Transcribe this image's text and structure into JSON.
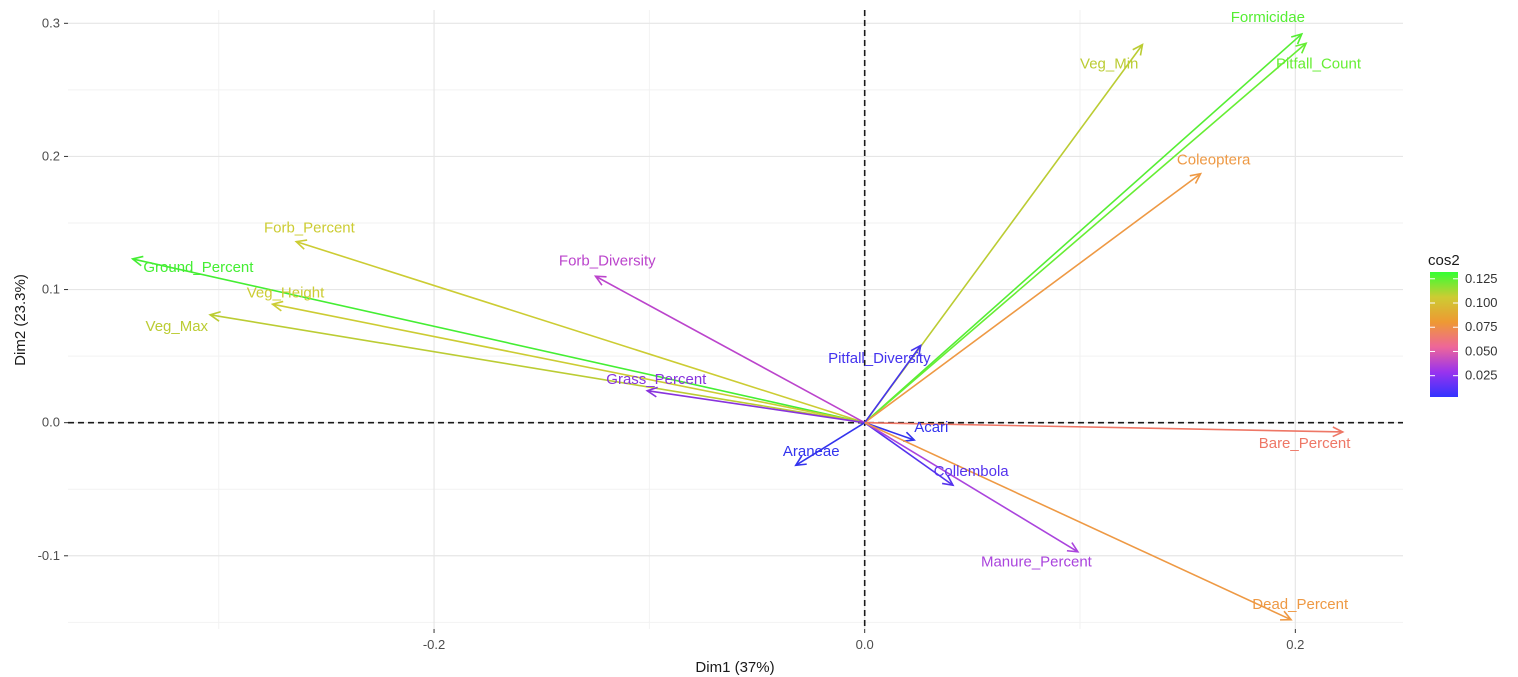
{
  "chart_data": {
    "type": "biplot",
    "xlabel": "Dim1 (37%)",
    "ylabel": "Dim2 (23.3%)",
    "xlim": [
      -0.37,
      0.25
    ],
    "ylim": [
      -0.155,
      0.31
    ],
    "x_ticks": [
      {
        "value": -0.2,
        "label": "-0.2"
      },
      {
        "value": 0.0,
        "label": "0.0"
      },
      {
        "value": 0.2,
        "label": "0.2"
      }
    ],
    "y_ticks": [
      {
        "value": -0.1,
        "label": "-0.1"
      },
      {
        "value": 0.0,
        "label": "0.0"
      },
      {
        "value": 0.1,
        "label": "0.1"
      },
      {
        "value": 0.2,
        "label": "0.2"
      },
      {
        "value": 0.3,
        "label": "0.3"
      }
    ],
    "grid": true,
    "reference_lines": {
      "x": 0,
      "y": 0,
      "style": "dashed"
    },
    "legend": {
      "title": "cos2",
      "position": "right",
      "gradient": [
        "#3333ff",
        "#9933ee",
        "#ee6699",
        "#ee9933",
        "#cccc33",
        "#33ff33"
      ],
      "ticks": [
        {
          "value": 0.025,
          "label": "0.025"
        },
        {
          "value": 0.05,
          "label": "0.050"
        },
        {
          "value": 0.075,
          "label": "0.075"
        },
        {
          "value": 0.1,
          "label": "0.100"
        },
        {
          "value": 0.125,
          "label": "0.125"
        }
      ],
      "range": [
        0.003,
        0.132
      ]
    },
    "variables": [
      {
        "name": "Formicidae",
        "x": 0.203,
        "y": 0.292,
        "cos2": 0.128,
        "color": "#55ee33",
        "label_anchor": "start",
        "label_x": 0.17,
        "label_y": 0.301
      },
      {
        "name": "Pitfall_Count",
        "x": 0.205,
        "y": 0.285,
        "cos2": 0.124,
        "color": "#66ee33",
        "label_anchor": "start",
        "label_x": 0.191,
        "label_y": 0.266
      },
      {
        "name": "Veg_Min",
        "x": 0.129,
        "y": 0.284,
        "cos2": 0.093,
        "color": "#bbcc33",
        "label_anchor": "start",
        "label_x": 0.1,
        "label_y": 0.266
      },
      {
        "name": "Coleoptera",
        "x": 0.156,
        "y": 0.187,
        "cos2": 0.07,
        "color": "#ee9944",
        "label_anchor": "start",
        "label_x": 0.145,
        "label_y": 0.194
      },
      {
        "name": "Forb_Percent",
        "x": -0.264,
        "y": 0.136,
        "cos2": 0.086,
        "color": "#cccc33",
        "label_anchor": "start",
        "label_x": -0.279,
        "label_y": 0.143
      },
      {
        "name": "Ground_Percent",
        "x": -0.34,
        "y": 0.123,
        "cos2": 0.127,
        "color": "#44ee33",
        "label_anchor": "start",
        "label_x": -0.335,
        "label_y": 0.113
      },
      {
        "name": "Veg_Height",
        "x": -0.275,
        "y": 0.089,
        "cos2": 0.083,
        "color": "#cccc33",
        "label_anchor": "start",
        "label_x": -0.287,
        "label_y": 0.094
      },
      {
        "name": "Veg_Max",
        "x": -0.304,
        "y": 0.081,
        "cos2": 0.092,
        "color": "#bbcc33",
        "label_anchor": "start",
        "label_x": -0.334,
        "label_y": 0.069
      },
      {
        "name": "Forb_Diversity",
        "x": -0.125,
        "y": 0.11,
        "cos2": 0.035,
        "color": "#bb44cc",
        "label_anchor": "start",
        "label_x": -0.142,
        "label_y": 0.118
      },
      {
        "name": "Grass_Percent",
        "x": -0.101,
        "y": 0.024,
        "cos2": 0.025,
        "color": "#8833dd",
        "label_anchor": "start",
        "label_x": -0.12,
        "label_y": 0.029
      },
      {
        "name": "Pitfall_Diversity",
        "x": 0.026,
        "y": 0.058,
        "cos2": 0.012,
        "color": "#4433ee",
        "label_anchor": "start",
        "label_x": -0.017,
        "label_y": 0.045
      },
      {
        "name": "Acari",
        "x": 0.023,
        "y": -0.013,
        "cos2": 0.006,
        "color": "#3333ee",
        "label_anchor": "start",
        "label_x": 0.023,
        "label_y": -0.007
      },
      {
        "name": "Araneae",
        "x": -0.032,
        "y": -0.032,
        "cos2": 0.008,
        "color": "#3333ee",
        "label_anchor": "start",
        "label_x": -0.038,
        "label_y": -0.025
      },
      {
        "name": "Collembola",
        "x": 0.041,
        "y": -0.047,
        "cos2": 0.014,
        "color": "#5533ee",
        "label_anchor": "start",
        "label_x": 0.032,
        "label_y": -0.04
      },
      {
        "name": "Manure_Percent",
        "x": 0.099,
        "y": -0.097,
        "cos2": 0.038,
        "color": "#aa44dd",
        "label_anchor": "start",
        "label_x": 0.054,
        "label_y": -0.108
      },
      {
        "name": "Bare_Percent",
        "x": 0.222,
        "y": -0.007,
        "cos2": 0.054,
        "color": "#ee7766",
        "label_anchor": "start",
        "label_x": 0.183,
        "label_y": -0.019
      },
      {
        "name": "Dead_Percent",
        "x": 0.198,
        "y": -0.148,
        "cos2": 0.067,
        "color": "#ee9944",
        "label_anchor": "start",
        "label_x": 0.18,
        "label_y": -0.14
      }
    ]
  }
}
